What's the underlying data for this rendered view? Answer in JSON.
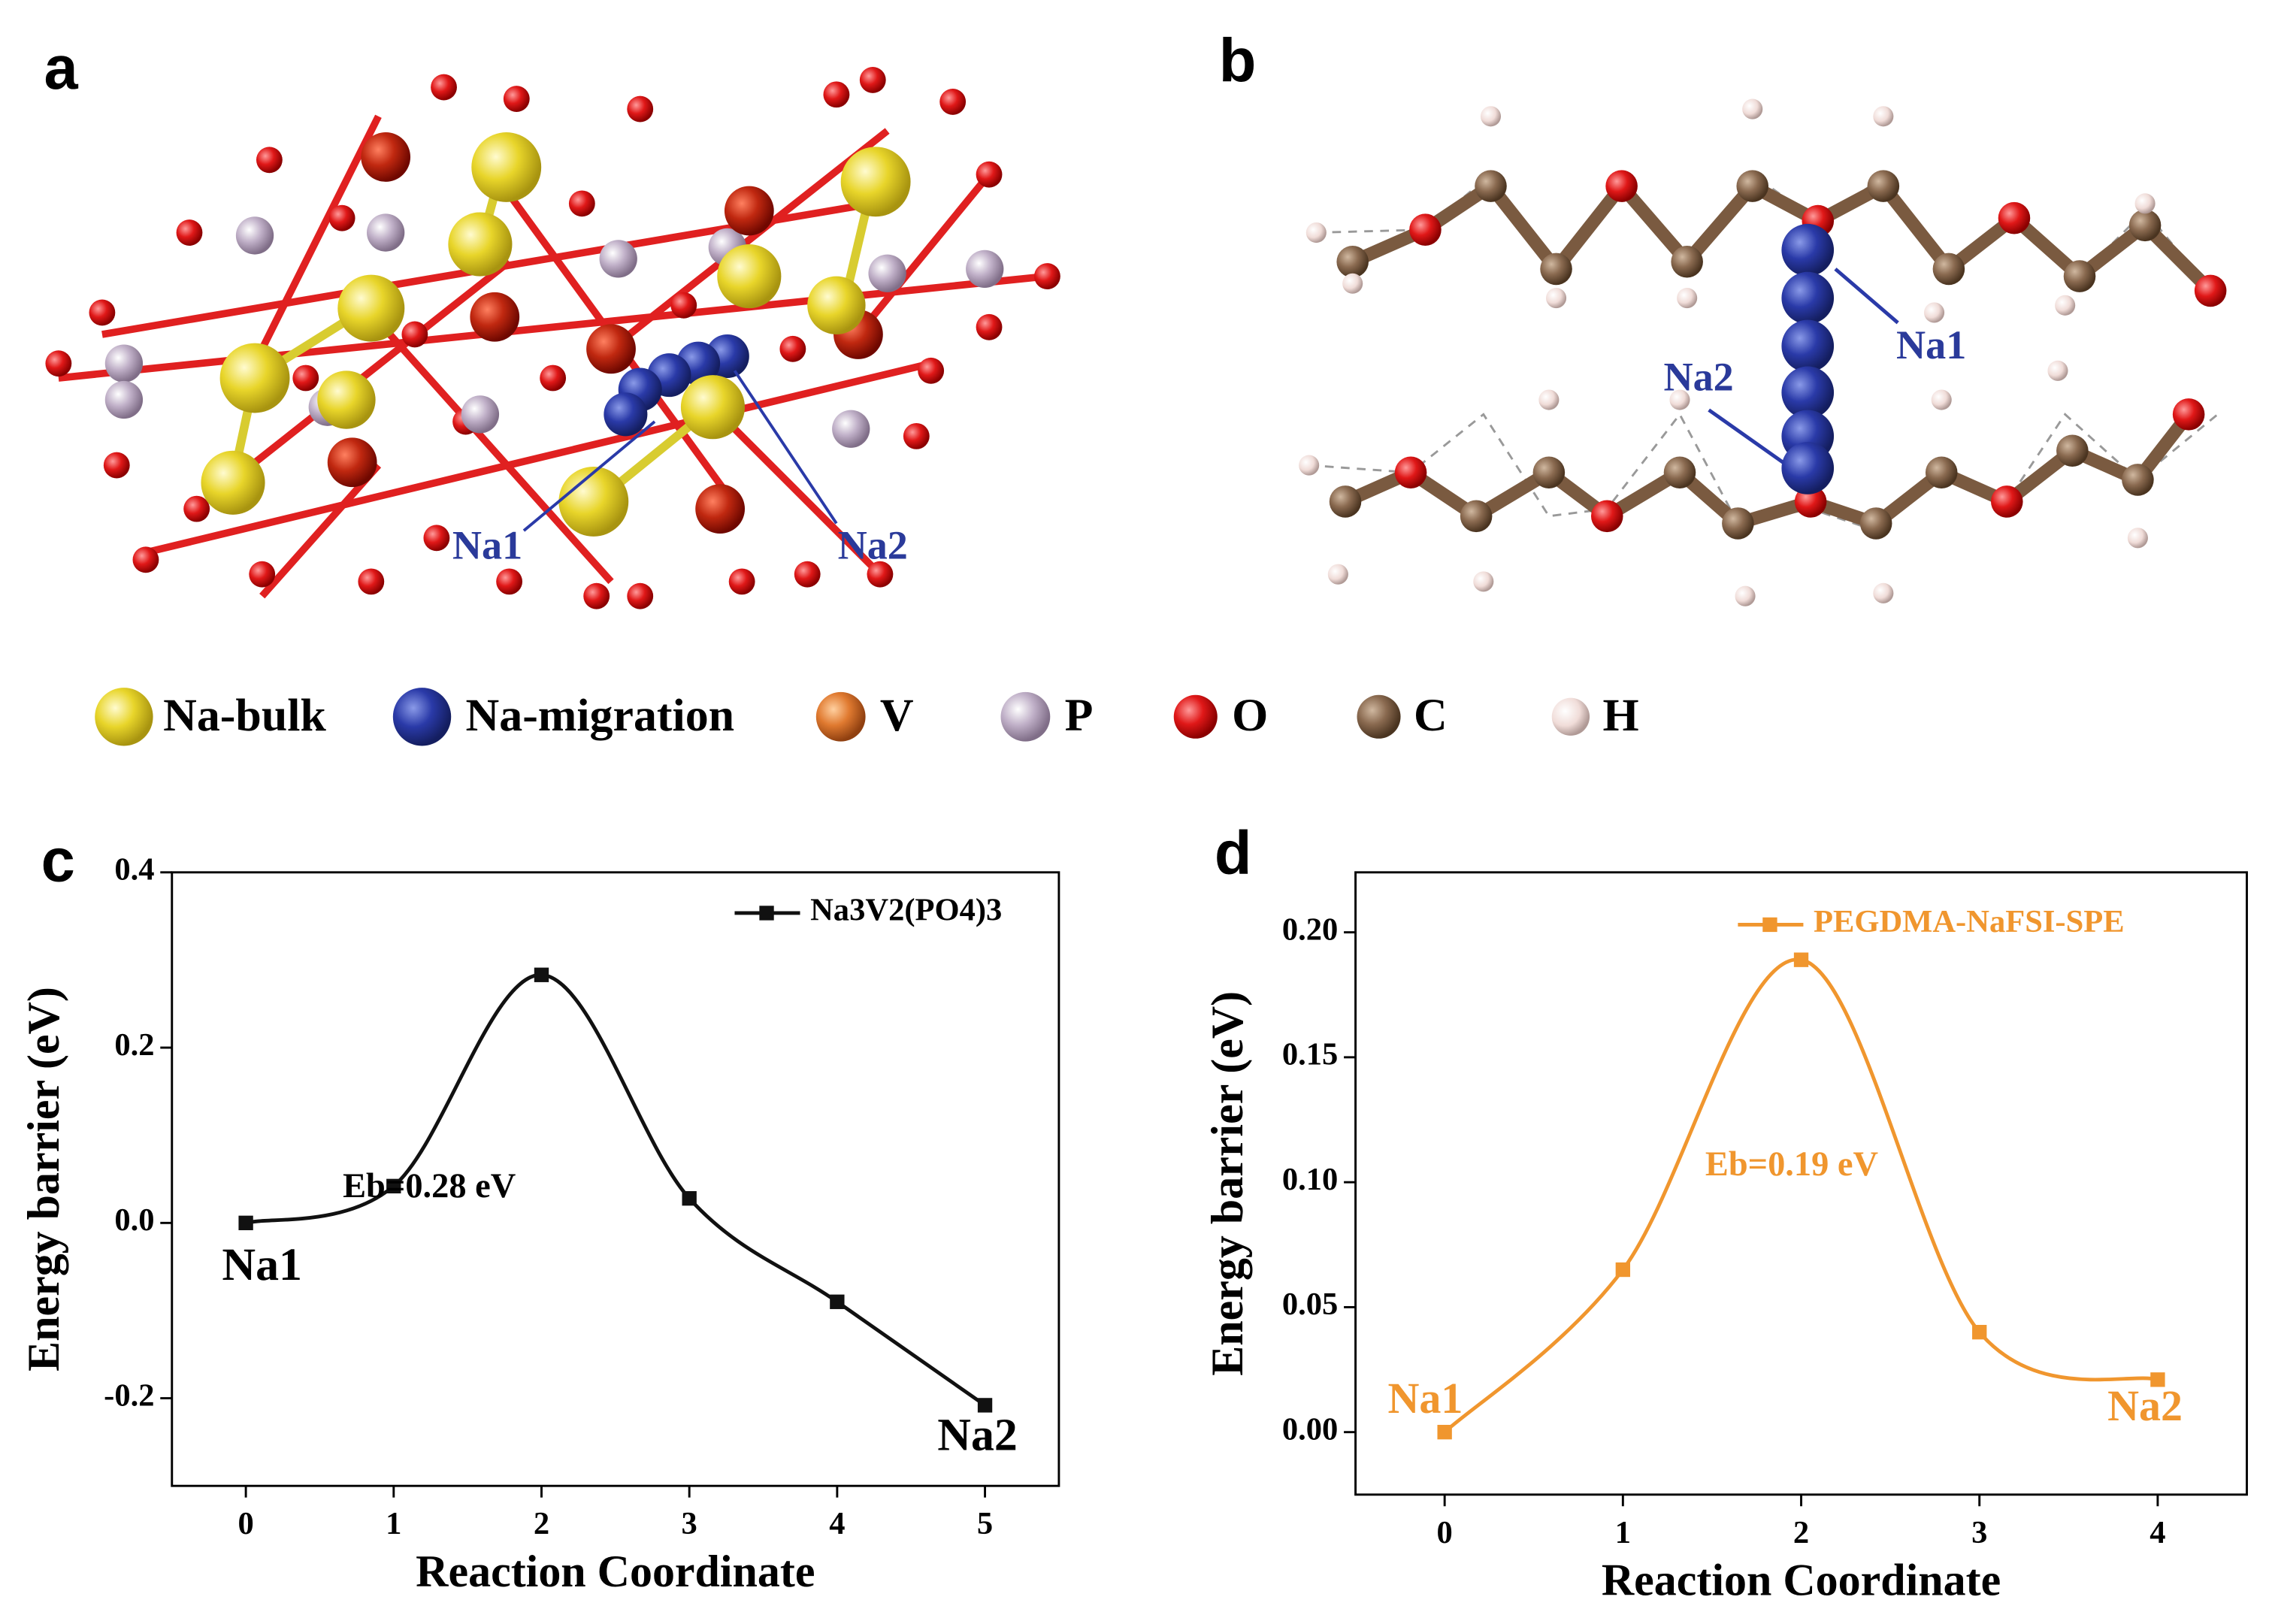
{
  "panel_labels": [
    "a",
    "b",
    "c",
    "d"
  ],
  "structure_a": {
    "labels": [
      "Na1",
      "Na2"
    ]
  },
  "structure_b": {
    "labels": [
      "Na1",
      "Na2"
    ]
  },
  "legend": [
    "Na-bulk",
    "Na-migration",
    "V",
    "P",
    "O",
    "C",
    "H"
  ],
  "chart_data": [
    {
      "type": "line",
      "x": [
        0,
        1,
        2,
        3,
        4,
        5
      ],
      "series": [
        {
          "name": "Na3V2(PO4)3",
          "color": "#111111",
          "values": [
            0,
            0.042,
            0.283,
            0.028,
            -0.09,
            -0.208
          ]
        }
      ],
      "xlabel": "Reaction Coordinate",
      "ylabel": "Energy barrier (eV)",
      "xlim": [
        -0.5,
        5.5
      ],
      "ylim": [
        -0.3,
        0.4
      ],
      "xticks": [
        0,
        1,
        2,
        3,
        4,
        5
      ],
      "yticks": [
        -0.2,
        {
          "value": 0,
          "label": "0.0"
        },
        0.2,
        0.4
      ],
      "annotations": [
        "Eb=0.28 eV",
        "Na1",
        "Na2"
      ]
    },
    {
      "type": "line",
      "x": [
        0,
        1,
        2,
        3,
        4
      ],
      "series": [
        {
          "name": "PEGDMA-NaFSI-SPE",
          "color": "#f0962e",
          "values": [
            0,
            0.065,
            0.189,
            0.04,
            0.021
          ]
        }
      ],
      "xlabel": "Reaction Coordinate",
      "ylabel": "Energy barrier (eV)",
      "xlim": [
        -0.5,
        4.5
      ],
      "ylim": [
        -0.025,
        0.224
      ],
      "xticks": [
        0,
        1,
        2,
        3,
        4
      ],
      "yticks": [
        {
          "value": 0,
          "label": "0.00"
        },
        {
          "value": 0.05,
          "label": "0.05"
        },
        {
          "value": 0.1,
          "label": "0.10"
        },
        {
          "value": 0.15,
          "label": "0.15"
        },
        {
          "value": 0.2,
          "label": "0.20"
        }
      ],
      "annotations": [
        "Eb=0.19 eV",
        "Na1",
        "Na2"
      ]
    }
  ]
}
